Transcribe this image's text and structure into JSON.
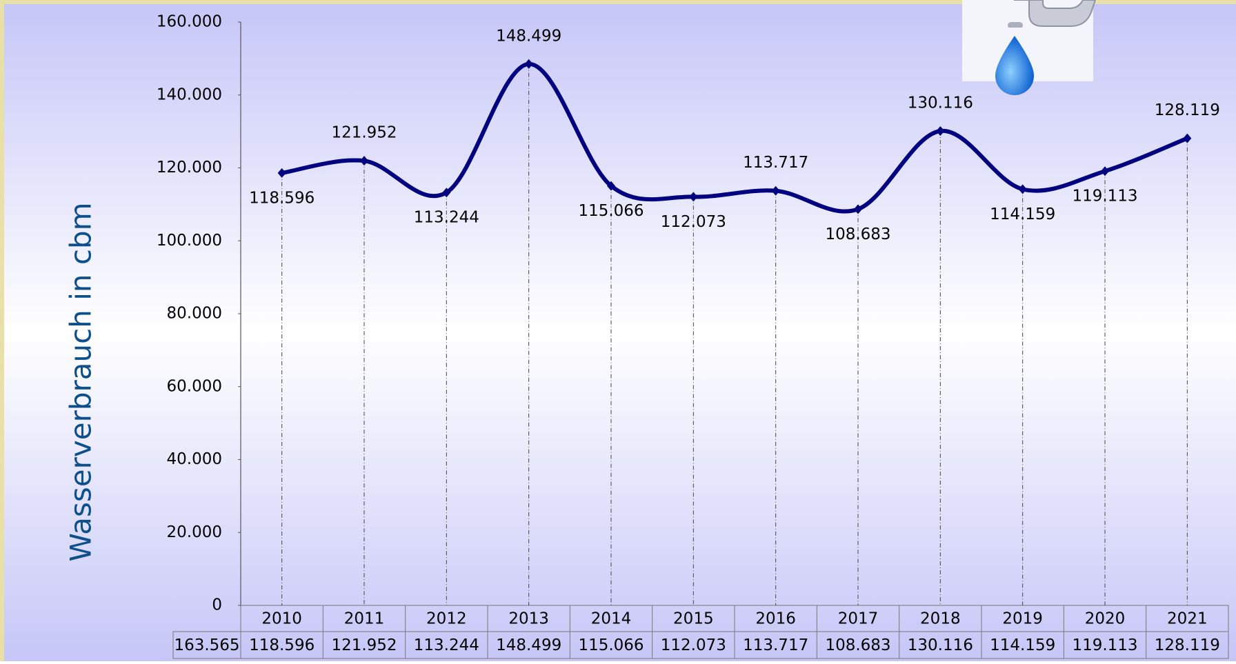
{
  "chart_data": {
    "type": "line",
    "y_axis_label": "Wasserverbrauch in cbm",
    "categories": [
      "2010",
      "2011",
      "2012",
      "2013",
      "2014",
      "2015",
      "2016",
      "2017",
      "2018",
      "2019",
      "2020",
      "2021"
    ],
    "series": [
      {
        "color": "#000080",
        "values": [
          118596,
          121952,
          113244,
          148499,
          115066,
          112073,
          113717,
          108683,
          130116,
          114159,
          119113,
          128119
        ],
        "value_labels": [
          "118.596",
          "121.952",
          "113.244",
          "148.499",
          "115.066",
          "112.073",
          "113.717",
          "108.683",
          "130.116",
          "114.159",
          "119.113",
          "128.119"
        ]
      }
    ],
    "table_first_cell": "163.565",
    "ylim": [
      0,
      160000
    ],
    "yticks": [
      0,
      {
        "value": 20000,
        "label": "20.000"
      },
      {
        "value": 40000,
        "label": "40.000"
      },
      {
        "value": 60000,
        "label": "60.000"
      },
      {
        "value": 80000,
        "label": "80.000"
      },
      {
        "value": 100000,
        "label": "100.000"
      },
      {
        "value": 120000,
        "label": "120.000"
      },
      {
        "value": 140000,
        "label": "140.000"
      },
      {
        "value": 160000,
        "label": "160.000"
      }
    ],
    "grid": false
  }
}
